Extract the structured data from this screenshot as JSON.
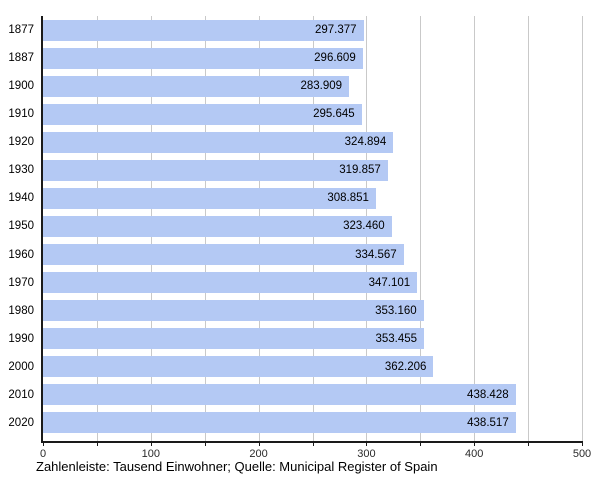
{
  "chart_data": {
    "type": "bar",
    "orientation": "horizontal",
    "title": "",
    "xlabel": "",
    "ylabel": "",
    "categories": [
      "1877",
      "1887",
      "1900",
      "1910",
      "1920",
      "1930",
      "1940",
      "1950",
      "1960",
      "1970",
      "1980",
      "1990",
      "2000",
      "2010",
      "2020"
    ],
    "values": [
      297.377,
      296.609,
      283.909,
      295.645,
      324.894,
      319.857,
      308.851,
      323.46,
      334.567,
      347.101,
      353.16,
      353.455,
      362.206,
      438.428,
      438.517
    ],
    "value_labels": [
      "297.377",
      "296.609",
      "283.909",
      "295.645",
      "324.894",
      "319.857",
      "308.851",
      "323.460",
      "334.567",
      "347.101",
      "353.160",
      "353.455",
      "362.206",
      "438.428",
      "438.517"
    ],
    "unit": "Tausend Einwohner",
    "xlim": [
      0,
      500
    ],
    "xticks": [
      0,
      100,
      200,
      300,
      400,
      500
    ],
    "xtick_labels": [
      "0",
      "100",
      "200",
      "300",
      "400",
      "500"
    ],
    "minor_tick_step": 50,
    "grid": true,
    "grid_step": 50,
    "legend": "none",
    "colors": {
      "bar_fill": "#b4c9f4",
      "grid_line": "#c9c9c9",
      "axis_line": "#1a1a1a",
      "text": "#000000"
    },
    "caption": "Zahlenleiste: Tausend Einwohner; Quelle: Municipal Register of Spain"
  }
}
